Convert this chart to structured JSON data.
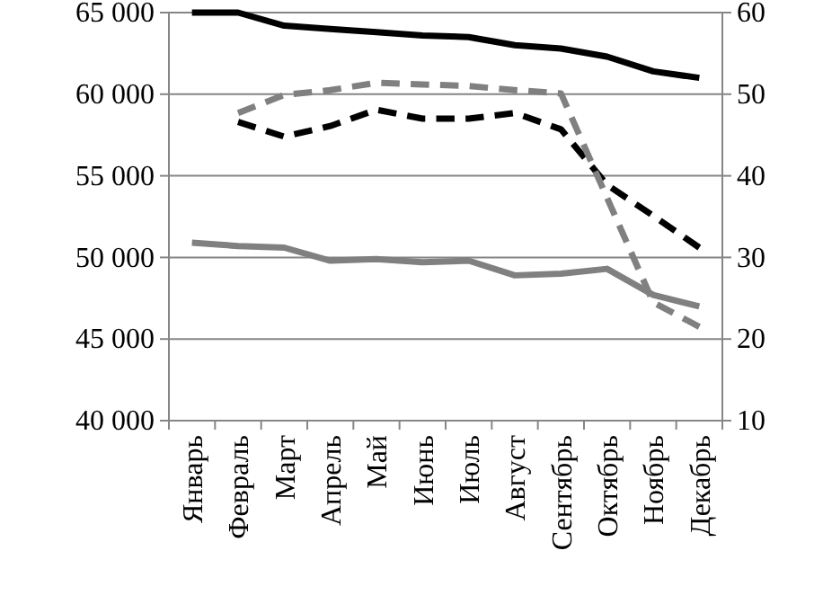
{
  "chart_data": {
    "type": "line",
    "categories": [
      "Январь",
      "Февраль",
      "Март",
      "Апрель",
      "Май",
      "Июнь",
      "Июль",
      "Август",
      "Сентябрь",
      "Октябрь",
      "Ноябрь",
      "Декабрь"
    ],
    "series": [
      {
        "color": "#000000",
        "line_style": "solid",
        "values": [
          65000,
          65000,
          64200,
          64000,
          63800,
          63600,
          63500,
          63000,
          62800,
          62300,
          61400,
          61000
        ]
      },
      {
        "color": "#808080",
        "line_style": "solid",
        "values": [
          50900,
          50700,
          50600,
          49800,
          49900,
          49700,
          49800,
          48900,
          49000,
          49300,
          47700,
          47000
        ]
      },
      {
        "color": "#000000",
        "line_style": "dashed",
        "axis": "y2",
        "values": [
          null,
          46.6,
          44.8,
          46.1,
          48.1,
          47.0,
          47.0,
          47.7,
          45.7,
          38.9,
          35.1,
          31.2
        ]
      },
      {
        "color": "#808080",
        "line_style": "dashed",
        "axis": "y2",
        "values": [
          null,
          47.7,
          49.9,
          50.5,
          51.4,
          51.2,
          51.0,
          50.5,
          50.1,
          37.3,
          24.5,
          21.5
        ]
      }
    ],
    "ylim": [
      40000,
      65000
    ],
    "yticks": [
      {
        "value": 40000,
        "label": "40 000"
      },
      {
        "value": 45000,
        "label": "45 000"
      },
      {
        "value": 50000,
        "label": "50 000"
      },
      {
        "value": 55000,
        "label": "55 000"
      },
      {
        "value": 60000,
        "label": "60 000"
      },
      {
        "value": 65000,
        "label": "65 000"
      }
    ],
    "y2lim": [
      10,
      60
    ],
    "y2ticks": [
      10,
      20,
      30,
      40,
      50,
      60
    ],
    "grid": "y",
    "marker": "none"
  }
}
